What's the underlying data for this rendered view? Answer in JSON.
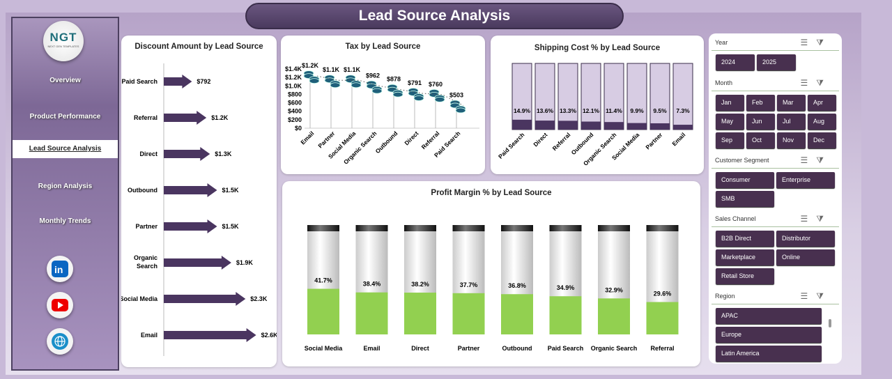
{
  "header": {
    "title": "Lead Source  Analysis"
  },
  "sidebar": {
    "logo": "NGT",
    "logo_sub": "NEXT GEN TEMPLATES",
    "items": [
      {
        "label": "Overview"
      },
      {
        "label": "Product Performance"
      },
      {
        "label": "Lead Source  Analysis",
        "active": true
      },
      {
        "label": "Region Analysis"
      },
      {
        "label": "Monthly Trends"
      }
    ],
    "social": [
      "linkedin-icon",
      "youtube-icon",
      "globe-icon"
    ]
  },
  "colors": {
    "primary": "#48304f",
    "bar": "#4a3560",
    "fill_green": "#92d050",
    "tax_icon": "#1f5f7a"
  },
  "chart_data": [
    {
      "type": "bar",
      "orientation": "horizontal",
      "title": "Discount Amount by Lead Source",
      "categories": [
        "Paid Search",
        "Referral",
        "Direct",
        "Outbound",
        "Partner",
        "Organic Search",
        "Social Media",
        "Email"
      ],
      "values": [
        792,
        1200,
        1300,
        1500,
        1500,
        1900,
        2300,
        2600
      ],
      "labels": [
        "$792",
        "$1.2K",
        "$1.3K",
        "$1.5K",
        "$1.5K",
        "$1.9K",
        "$2.3K",
        "$2.6K"
      ]
    },
    {
      "type": "line",
      "title": "Tax by Lead Source",
      "categories": [
        "Email",
        "Partner",
        "Social Media",
        "Organic Search",
        "Outbound",
        "Direct",
        "Referral",
        "Paid Search"
      ],
      "values": [
        1200,
        1100,
        1100,
        962,
        878,
        791,
        760,
        503
      ],
      "labels": [
        "$1.2K",
        "$1.1K",
        "$1.1K",
        "$962",
        "$878",
        "$791",
        "$760",
        "$503"
      ],
      "yticks": [
        "$0",
        "$200",
        "$400",
        "$600",
        "$800",
        "$1.0K",
        "$1.2K",
        "$1.4K"
      ],
      "ylim": [
        0,
        1400
      ]
    },
    {
      "type": "bar",
      "title": "Shipping Cost % by Lead Source",
      "categories": [
        "Paid Search",
        "Direct",
        "Referral",
        "Outbound",
        "Organic Search",
        "Social Media",
        "Partner",
        "Email"
      ],
      "values": [
        14.9,
        13.6,
        13.3,
        12.1,
        11.4,
        9.9,
        9.5,
        7.3
      ],
      "labels": [
        "14.9%",
        "13.6%",
        "13.3%",
        "12.1%",
        "11.4%",
        "9.9%",
        "9.5%",
        "7.3%"
      ],
      "ylim": [
        0,
        100
      ]
    },
    {
      "type": "bar",
      "title": "Profit Margin % by Lead Source",
      "categories": [
        "Social Media",
        "Email",
        "Direct",
        "Partner",
        "Outbound",
        "Paid Search",
        "Organic Search",
        "Referral"
      ],
      "values": [
        41.7,
        38.4,
        38.2,
        37.7,
        36.8,
        34.9,
        32.9,
        29.6
      ],
      "labels": [
        "41.7%",
        "38.4%",
        "38.2%",
        "37.7%",
        "36.8%",
        "34.9%",
        "32.9%",
        "29.6%"
      ],
      "ylim": [
        0,
        100
      ]
    }
  ],
  "slicers": [
    {
      "title": "Year",
      "items": [
        "2024",
        "2025"
      ]
    },
    {
      "title": "Month",
      "items": [
        "Jan",
        "Feb",
        "Mar",
        "Apr",
        "May",
        "Jun",
        "Jul",
        "Aug",
        "Sep",
        "Oct",
        "Nov",
        "Dec"
      ]
    },
    {
      "title": "Customer Segment",
      "items": [
        "Consumer",
        "Enterprise",
        "SMB"
      ]
    },
    {
      "title": "Sales Channel",
      "items": [
        "B2B Direct",
        "Distributor",
        "Marketplace",
        "Online",
        "Retail Store"
      ]
    },
    {
      "title": "Region",
      "items": [
        "APAC",
        "Europe",
        "Latin America"
      ]
    }
  ]
}
